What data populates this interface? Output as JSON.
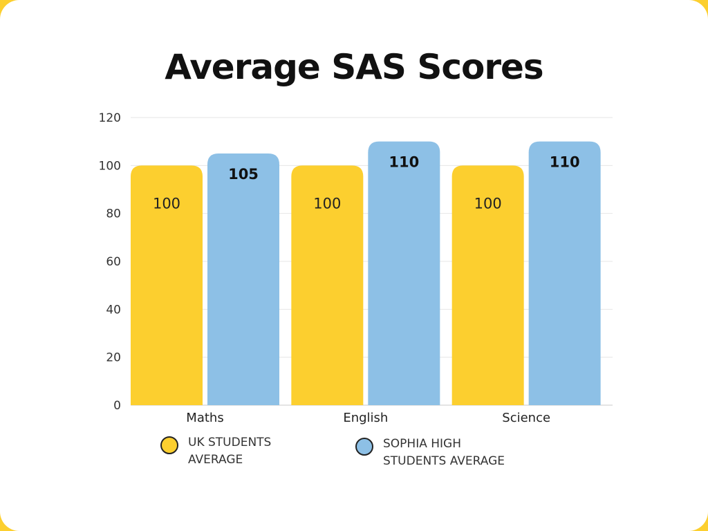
{
  "chart_data": {
    "type": "bar",
    "title": "Average SAS Scores",
    "categories": [
      "Maths",
      "English",
      "Science"
    ],
    "series": [
      {
        "name": "UK STUDENTS AVERAGE",
        "values": [
          100,
          100,
          100
        ],
        "color": "#fccf2f"
      },
      {
        "name": "SOPHIA HIGH STUDENTS AVERAGE",
        "values": [
          105,
          110,
          110
        ],
        "color": "#8dc0e6"
      }
    ],
    "ylim": [
      0,
      120
    ],
    "yticks": [
      0,
      20,
      40,
      60,
      80,
      100,
      120
    ],
    "grid": true,
    "legend_position": "bottom"
  },
  "legend": {
    "items": [
      {
        "line1": "UK STUDENTS",
        "line2": "AVERAGE",
        "color": "#fccf2f"
      },
      {
        "line1": "SOPHIA HIGH",
        "line2": "STUDENTS AVERAGE",
        "color": "#8dc0e6"
      }
    ]
  },
  "colors": {
    "frame": "#fccf2f",
    "grid": "#e6e6e6",
    "axis": "#c8c8c8"
  }
}
